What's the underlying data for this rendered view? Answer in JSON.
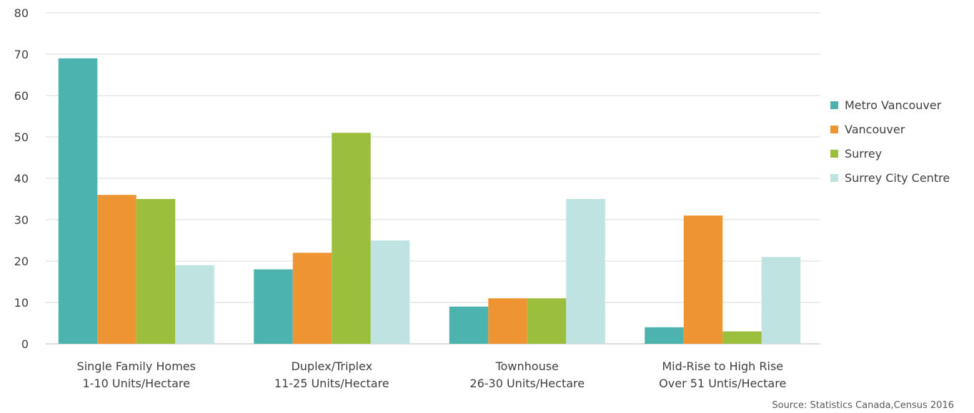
{
  "chart_data": {
    "type": "bar",
    "categories": [
      [
        "Single Family Homes",
        "1-10 Units/Hectare"
      ],
      [
        "Duplex/Triplex",
        "11-25 Units/Hectare"
      ],
      [
        "Townhouse",
        "26-30 Units/Hectare"
      ],
      [
        "Mid-Rise to High Rise",
        "Over 51 Untis/Hectare"
      ]
    ],
    "series": [
      {
        "name": "Metro Vancouver",
        "color": "#4db3af",
        "values": [
          69,
          18,
          9,
          4
        ]
      },
      {
        "name": "Vancouver",
        "color": "#ee9432",
        "values": [
          36,
          22,
          11,
          31
        ]
      },
      {
        "name": "Surrey",
        "color": "#9cbe3d",
        "values": [
          35,
          51,
          11,
          3
        ]
      },
      {
        "name": "Surrey City Centre",
        "color": "#bfe3e1",
        "values": [
          19,
          25,
          35,
          21
        ]
      }
    ],
    "ylim": [
      0,
      80
    ],
    "yticks": [
      0,
      10,
      20,
      30,
      40,
      50,
      60,
      70,
      80
    ],
    "grid": true,
    "legend_position": "right"
  },
  "source": "Source: Statistics Canada,Census 2016"
}
